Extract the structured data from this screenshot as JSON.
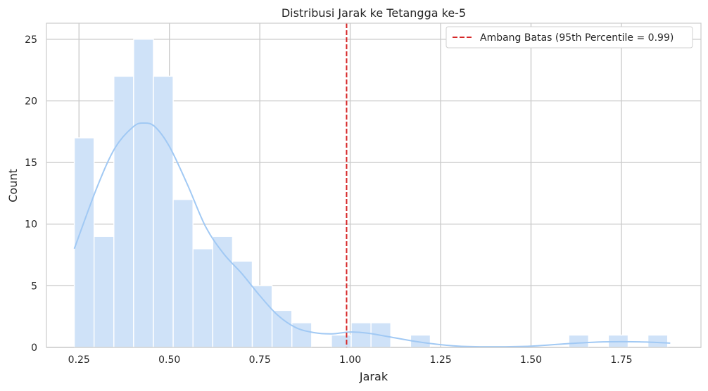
{
  "chart_data": {
    "type": "bar",
    "title": "Distribusi Jarak ke Tetangga ke-5",
    "xlabel": "Jarak",
    "ylabel": "Count",
    "xlim": [
      0.16,
      1.97
    ],
    "ylim": [
      0,
      26.3
    ],
    "grid": true,
    "legend_position": "top-right",
    "x_ticks": [
      0.25,
      0.5,
      0.75,
      1.0,
      1.25,
      1.5,
      1.75
    ],
    "x_tick_labels": [
      "0.25",
      "0.50",
      "0.75",
      "1.00",
      "1.25",
      "1.50",
      "1.75"
    ],
    "y_ticks": [
      0,
      5,
      10,
      15,
      20,
      25
    ],
    "y_tick_labels": [
      "0",
      "5",
      "10",
      "15",
      "20",
      "25"
    ],
    "histogram": {
      "bin_start": 0.237,
      "bin_width": 0.0547,
      "counts": [
        17,
        9,
        22,
        25,
        22,
        12,
        8,
        9,
        7,
        5,
        3,
        2,
        0,
        1,
        2,
        2,
        0,
        1,
        0,
        0,
        0,
        0,
        0,
        0,
        0,
        1,
        0,
        1,
        0,
        1
      ],
      "color": "#cfe2f8"
    },
    "kde": {
      "x": [
        0.237,
        0.3,
        0.35,
        0.4,
        0.43,
        0.46,
        0.5,
        0.55,
        0.6,
        0.65,
        0.7,
        0.75,
        0.8,
        0.85,
        0.9,
        0.95,
        1.0,
        1.05,
        1.1,
        1.2,
        1.3,
        1.4,
        1.5,
        1.6,
        1.7,
        1.8,
        1.885
      ],
      "y": [
        8.0,
        13.0,
        16.2,
        17.9,
        18.2,
        17.9,
        16.3,
        13.2,
        9.8,
        7.6,
        6.0,
        4.2,
        2.6,
        1.6,
        1.2,
        1.1,
        1.25,
        1.15,
        0.9,
        0.4,
        0.1,
        0.05,
        0.1,
        0.3,
        0.45,
        0.45,
        0.35
      ],
      "color": "#a1c9f4"
    },
    "threshold": {
      "x": 0.99,
      "label": "Ambang Batas (95th Percentile = 0.99)",
      "color": "#d62728"
    }
  }
}
